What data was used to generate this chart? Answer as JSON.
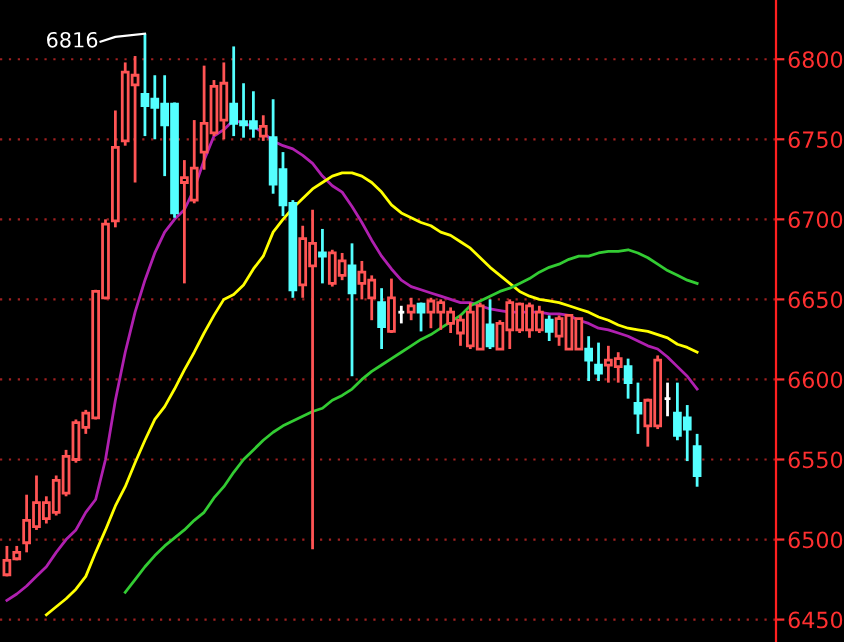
{
  "chart_data": {
    "type": "candlestick",
    "categories": [
      null,
      null,
      null,
      null,
      null,
      null,
      null,
      null,
      null,
      null,
      null,
      null,
      null,
      null,
      null,
      null,
      null,
      null,
      null,
      null,
      null,
      null,
      null,
      null,
      null,
      null,
      null,
      null,
      null,
      null,
      null,
      null,
      null,
      null,
      null,
      null,
      null,
      null,
      null,
      null,
      null,
      null,
      null,
      null,
      null,
      null,
      null,
      null,
      null,
      null,
      null,
      null,
      null,
      null,
      null,
      null,
      null,
      null,
      null,
      null,
      null,
      null,
      null,
      null,
      null,
      null,
      null,
      null,
      null,
      null,
      null
    ],
    "ohlc": [
      [
        6478,
        6496,
        6477,
        6487
      ],
      [
        6488,
        6496,
        6487,
        6492
      ],
      [
        6498,
        6528,
        6492,
        6512
      ],
      [
        6508,
        6540,
        6506,
        6523
      ],
      [
        6513,
        6527,
        6510,
        6523
      ],
      [
        6517,
        6540,
        6515,
        6537
      ],
      [
        6529,
        6556,
        6527,
        6552
      ],
      [
        6550,
        6575,
        6548,
        6573
      ],
      [
        6570,
        6581,
        6566,
        6579
      ],
      [
        6576,
        6656,
        6575,
        6655
      ],
      [
        6651,
        6700,
        6650,
        6697
      ],
      [
        6699,
        6768,
        6695,
        6745
      ],
      [
        6749,
        6798,
        6746,
        6792
      ],
      [
        6784,
        6802,
        6723,
        6790
      ],
      [
        6778,
        6816,
        6752,
        6771
      ],
      [
        6775,
        6790,
        6750,
        6770
      ],
      [
        6772,
        6790,
        6727,
        6759
      ],
      [
        6772,
        6773,
        6701,
        6704
      ],
      [
        6723,
        6737,
        6660,
        6726
      ],
      [
        6712,
        6762,
        6710,
        6732
      ],
      [
        6742,
        6796,
        6731,
        6760
      ],
      [
        6754,
        6787,
        6752,
        6783
      ],
      [
        6762,
        6798,
        6750,
        6785
      ],
      [
        6772,
        6808,
        6752,
        6760
      ],
      [
        6761,
        6785,
        6751,
        6759
      ],
      [
        6761,
        6780,
        6751,
        6757
      ],
      [
        6752,
        6765,
        6749,
        6758
      ],
      [
        6751,
        6775,
        6716,
        6722
      ],
      [
        6731,
        6742,
        6702,
        6709
      ],
      [
        6710,
        6712,
        6651,
        6656
      ],
      [
        6659,
        6696,
        6651,
        6688
      ],
      [
        6671,
        6706,
        6494,
        6685
      ],
      [
        6679,
        6694,
        6660,
        6677
      ],
      [
        6660,
        6681,
        6658,
        6679
      ],
      [
        6665,
        6679,
        6662,
        6674
      ],
      [
        6671,
        6685,
        6602,
        6654
      ],
      [
        6660,
        6674,
        6650,
        6667
      ],
      [
        6651,
        6665,
        6637,
        6662
      ],
      [
        6648,
        6657,
        6619,
        6633
      ],
      [
        6630,
        6663,
        6629,
        6651
      ],
      [
        6642,
        6646,
        6635,
        6642
      ],
      [
        6642,
        6651,
        6637,
        6646
      ],
      [
        6647,
        6648,
        6630,
        6642
      ],
      [
        6642,
        6651,
        6632,
        6649
      ],
      [
        6642,
        6650,
        6631,
        6648
      ],
      [
        6635,
        6645,
        6629,
        6642
      ],
      [
        6629,
        6640,
        6621,
        6637
      ],
      [
        6621,
        6648,
        6619,
        6642
      ],
      [
        6619,
        6648,
        6619,
        6646
      ],
      [
        6634,
        6650,
        6619,
        6621
      ],
      [
        6619,
        6637,
        6619,
        6635
      ],
      [
        6631,
        6650,
        6619,
        6648
      ],
      [
        6631,
        6648,
        6629,
        6647
      ],
      [
        6631,
        6648,
        6626,
        6646
      ],
      [
        6631,
        6646,
        6629,
        6642
      ],
      [
        6637,
        6640,
        6624,
        6630
      ],
      [
        6627,
        6640,
        6621,
        6638
      ],
      [
        6619,
        6640,
        6619,
        6640
      ],
      [
        6619,
        6638,
        6619,
        6638
      ],
      [
        6619,
        6627,
        6599,
        6612
      ],
      [
        6609,
        6623,
        6599,
        6604
      ],
      [
        6609,
        6621,
        6598,
        6612
      ],
      [
        6608,
        6617,
        6598,
        6613
      ],
      [
        6608,
        6613,
        6588,
        6598
      ],
      [
        6585,
        6598,
        6566,
        6579
      ],
      [
        6571,
        6588,
        6558,
        6587
      ],
      [
        6571,
        6615,
        6569,
        6612
      ],
      [
        6588,
        6598,
        6577,
        6588
      ],
      [
        6579,
        6598,
        6562,
        6565
      ],
      [
        6576,
        6584,
        6549,
        6569
      ],
      [
        6558,
        6566,
        6533,
        6540
      ]
    ],
    "colors": [
      "#ff5454",
      "#ff5454",
      "#ff5454",
      "#ff5454",
      "#ff5454",
      "#ff5454",
      "#ff5454",
      "#ff5454",
      "#ff5454",
      "#ff5454",
      "#ff5454",
      "#ff5454",
      "#ff5454",
      "#ff5454",
      "#54ffff",
      "#54ffff",
      "#54ffff",
      "#54ffff",
      "#ff5454",
      "#ff5454",
      "#ff5454",
      "#ff5454",
      "#ff5454",
      "#54ffff",
      "#54ffff",
      "#54ffff",
      "#ff5454",
      "#54ffff",
      "#54ffff",
      "#54ffff",
      "#ff5454",
      "#ff5454",
      "#54ffff",
      "#ff5454",
      "#ff5454",
      "#54ffff",
      "#ff5454",
      "#ff5454",
      "#54ffff",
      "#ff5454",
      "#ffffff",
      "#ff5454",
      "#54ffff",
      "#ff5454",
      "#ff5454",
      "#ff5454",
      "#ff5454",
      "#ff5454",
      "#ff5454",
      "#54ffff",
      "#ff5454",
      "#ff5454",
      "#ff5454",
      "#ff5454",
      "#ff5454",
      "#54ffff",
      "#ff5454",
      "#ff5454",
      "#ff5454",
      "#54ffff",
      "#54ffff",
      "#ff5454",
      "#ff5454",
      "#54ffff",
      "#54ffff",
      "#ff5454",
      "#ff5454",
      "#ffffff",
      "#54ffff",
      "#54ffff",
      "#54ffff"
    ],
    "series": [
      {
        "type": "line",
        "color": "#b020b0",
        "values": [
          6462,
          6466,
          6471,
          6477,
          6483,
          6492,
          6500,
          6506,
          6517,
          6525,
          6550,
          6587,
          6617,
          6642,
          6662,
          6679,
          6692,
          6700,
          6706,
          6719,
          6737,
          6752,
          6756,
          6762,
          6760,
          6758,
          6754,
          6749,
          6746,
          6744,
          6740,
          6735,
          6727,
          6721,
          6717,
          6708,
          6698,
          6687,
          6677,
          6669,
          6662,
          6658,
          6656,
          6654,
          6652,
          6650,
          6648,
          6648,
          6646,
          6644,
          6643,
          6642,
          6642,
          6642,
          6642,
          6641,
          6641,
          6640,
          6637,
          6635,
          6632,
          6631,
          6629,
          6627,
          6624,
          6621,
          6619,
          6614,
          6608,
          6602,
          6594
        ]
      },
      {
        "type": "line",
        "color": "#ffff00",
        "values": [
          null,
          null,
          null,
          null,
          6453,
          6458,
          6463,
          6469,
          6477,
          6492,
          6506,
          6521,
          6533,
          6548,
          6562,
          6575,
          6583,
          6594,
          6606,
          6617,
          6629,
          6640,
          6650,
          6653,
          6659,
          6669,
          6677,
          6692,
          6700,
          6707,
          6713,
          6719,
          6723,
          6727,
          6729,
          6729,
          6727,
          6723,
          6717,
          6709,
          6704,
          6701,
          6698,
          6696,
          6692,
          6690,
          6686,
          6682,
          6676,
          6670,
          6665,
          6660,
          6655,
          6652,
          6650,
          6649,
          6648,
          6646,
          6644,
          6642,
          6639,
          6637,
          6634,
          6632,
          6631,
          6630,
          6628,
          6626,
          6622,
          6620,
          6617
        ]
      },
      {
        "type": "line",
        "color": "#33cc33",
        "values": [
          null,
          null,
          null,
          null,
          null,
          null,
          null,
          null,
          null,
          null,
          null,
          null,
          6467,
          6475,
          6483,
          6490,
          6496,
          6501,
          6506,
          6512,
          6517,
          6526,
          6533,
          6542,
          6550,
          6556,
          6562,
          6567,
          6571,
          6574,
          6577,
          6580,
          6582,
          6587,
          6590,
          6594,
          6600,
          6605,
          6609,
          6613,
          6617,
          6621,
          6625,
          6628,
          6632,
          6636,
          6640,
          6646,
          6649,
          6652,
          6655,
          6657,
          6660,
          6663,
          6667,
          6670,
          6672,
          6675,
          6677,
          6677,
          6679,
          6680,
          6680,
          6681,
          6679,
          6676,
          6672,
          6668,
          6665,
          6662,
          6660
        ]
      }
    ],
    "ylim": [
      6436,
      6837
    ],
    "yticks": [
      6450,
      6500,
      6550,
      6600,
      6650,
      6700,
      6750,
      6800
    ],
    "grid": "y",
    "annotations": [
      "6816"
    ]
  }
}
